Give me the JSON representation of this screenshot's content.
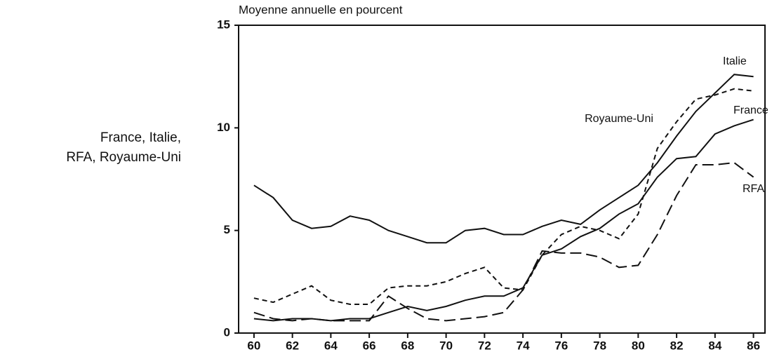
{
  "chart_data": {
    "type": "line",
    "title": "Moyenne annuelle en pourcent",
    "subtitle_lines": [
      "France, Italie,",
      "RFA, Royaume-Uni"
    ],
    "x": [
      60,
      61,
      62,
      63,
      64,
      65,
      66,
      67,
      68,
      69,
      70,
      71,
      72,
      73,
      74,
      75,
      76,
      77,
      78,
      79,
      80,
      81,
      82,
      83,
      84,
      85,
      86
    ],
    "xlim": [
      59.2,
      86.6
    ],
    "xticks": [
      60,
      62,
      64,
      66,
      68,
      70,
      72,
      74,
      76,
      78,
      80,
      82,
      84,
      86
    ],
    "ylim": [
      0,
      15
    ],
    "yticks": [
      0,
      5,
      10,
      15
    ],
    "grid": false,
    "series": [
      {
        "name": "Italie",
        "color": "#111111",
        "dash": "solid",
        "values": [
          7.2,
          6.6,
          5.5,
          5.1,
          5.2,
          5.7,
          5.5,
          5.0,
          4.7,
          4.4,
          4.4,
          5.0,
          5.1,
          4.8,
          4.8,
          5.2,
          5.5,
          5.3,
          6.0,
          6.6,
          7.2,
          8.3,
          9.6,
          10.8,
          11.7,
          12.6,
          12.5
        ]
      },
      {
        "name": "France",
        "color": "#111111",
        "dash": "solid",
        "values": [
          0.7,
          0.6,
          0.7,
          0.7,
          0.6,
          0.7,
          0.7,
          1.0,
          1.3,
          1.1,
          1.3,
          1.6,
          1.8,
          1.8,
          2.2,
          3.8,
          4.1,
          4.7,
          5.1,
          5.8,
          6.3,
          7.6,
          8.5,
          8.6,
          9.7,
          10.1,
          10.4
        ]
      },
      {
        "name": "Royaume-Uni",
        "color": "#111111",
        "dash": "short",
        "values": [
          1.7,
          1.5,
          1.9,
          2.3,
          1.6,
          1.4,
          1.4,
          2.2,
          2.3,
          2.3,
          2.5,
          2.9,
          3.2,
          2.2,
          2.1,
          3.8,
          4.8,
          5.2,
          5.0,
          4.6,
          5.8,
          9.0,
          10.3,
          11.4,
          11.6,
          11.9,
          11.8
        ]
      },
      {
        "name": "RFA",
        "color": "#111111",
        "dash": "long",
        "values": [
          1.0,
          0.7,
          0.6,
          0.7,
          0.6,
          0.6,
          0.6,
          1.8,
          1.2,
          0.7,
          0.6,
          0.7,
          0.8,
          1.0,
          2.1,
          4.0,
          3.9,
          3.9,
          3.7,
          3.2,
          3.3,
          4.8,
          6.7,
          8.2,
          8.2,
          8.3,
          7.6
        ]
      }
    ]
  }
}
